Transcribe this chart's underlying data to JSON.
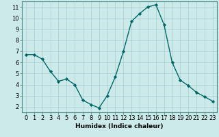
{
  "x": [
    0,
    1,
    2,
    3,
    4,
    5,
    6,
    7,
    8,
    9,
    10,
    11,
    12,
    13,
    14,
    15,
    16,
    17,
    18,
    19,
    20,
    21,
    22,
    23
  ],
  "y": [
    6.7,
    6.7,
    6.3,
    5.2,
    4.3,
    4.5,
    4.0,
    2.6,
    2.2,
    1.9,
    3.0,
    4.7,
    7.0,
    9.7,
    10.4,
    11.0,
    11.2,
    9.4,
    6.0,
    4.4,
    3.9,
    3.3,
    2.9,
    2.5
  ],
  "line_color": "#006868",
  "marker": "D",
  "marker_size": 2.2,
  "background_color": "#cceaea",
  "grid_color": "#aacccc",
  "xlabel": "Humidex (Indice chaleur)",
  "xlim": [
    -0.5,
    23.5
  ],
  "ylim": [
    1.5,
    11.5
  ],
  "yticks": [
    2,
    3,
    4,
    5,
    6,
    7,
    8,
    9,
    10,
    11
  ],
  "xticks": [
    0,
    1,
    2,
    3,
    4,
    5,
    6,
    7,
    8,
    9,
    10,
    11,
    12,
    13,
    14,
    15,
    16,
    17,
    18,
    19,
    20,
    21,
    22,
    23
  ],
  "xlabel_fontsize": 6.5,
  "tick_fontsize": 6.0,
  "linewidth": 1.0,
  "spine_color": "#448888"
}
